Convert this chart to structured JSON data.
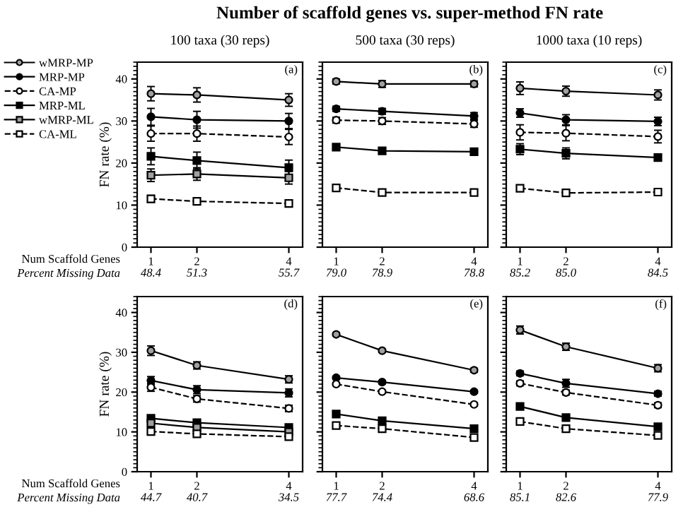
{
  "chart_data": [
    {
      "type": "line",
      "title": "Number of scaffold genes vs. super-method FN rate",
      "subtitle": "100 taxa (30 reps)",
      "xlabel": "Num Scaffold Genes",
      "x2label": "Percent Missing Data",
      "ylabel": "FN rate (%)",
      "annotations": [
        "(a)",
        "48.4",
        "51.3",
        "55.7"
      ],
      "x": [
        1,
        2,
        4
      ],
      "xlim": [
        0.7,
        4.3
      ],
      "xticks": [
        1,
        2,
        4
      ],
      "ylim": [
        0,
        44
      ],
      "yticks": [
        0,
        10,
        20,
        30,
        40
      ],
      "legend": "left",
      "grid": false,
      "series": [
        {
          "name": "wMRP-MP",
          "color": "#a0a0a0",
          "marker": "circle",
          "line_style": "solid",
          "values": [
            36.5,
            36.2,
            35.0
          ],
          "errors": [
            1.7,
            1.7,
            1.5
          ]
        },
        {
          "name": "MRP-MP",
          "color": "#000000",
          "marker": "circle",
          "line_style": "solid",
          "values": [
            31.0,
            30.3,
            30.0
          ],
          "errors": [
            2.0,
            2.0,
            1.8
          ]
        },
        {
          "name": "CA-MP",
          "color": "#ffffff",
          "marker": "circle",
          "line_style": "dashed",
          "values": [
            27.0,
            27.0,
            26.2
          ],
          "errors": [
            1.8,
            1.8,
            1.8
          ]
        },
        {
          "name": "MRP-ML",
          "color": "#000000",
          "marker": "square",
          "line_style": "solid",
          "values": [
            21.6,
            20.6,
            18.9
          ],
          "errors": [
            2.0,
            2.0,
            1.8
          ]
        },
        {
          "name": "wMRP-ML",
          "color": "#a0a0a0",
          "marker": "square",
          "line_style": "solid",
          "values": [
            17.1,
            17.4,
            16.5
          ],
          "errors": [
            1.5,
            1.5,
            1.5
          ]
        },
        {
          "name": "CA-ML",
          "color": "#ffffff",
          "marker": "square",
          "line_style": "dashed",
          "values": [
            11.5,
            10.9,
            10.4
          ],
          "errors": [
            0.8,
            0.8,
            0.6
          ]
        }
      ]
    },
    {
      "type": "line",
      "subtitle": "500 taxa (30 reps)",
      "annotations": [
        "(b)",
        "79.0",
        "78.9",
        "78.8"
      ],
      "x": [
        1,
        2,
        4
      ],
      "xlim": [
        0.7,
        4.3
      ],
      "xticks": [
        1,
        2,
        4
      ],
      "ylim": [
        0,
        44
      ],
      "yticks": [
        0,
        10,
        20,
        30,
        40
      ],
      "tick_labels": "x",
      "grid": false,
      "series": [
        {
          "color": "#a0a0a0",
          "marker": "circle",
          "line_style": "solid",
          "values": [
            39.4,
            38.8,
            38.8
          ],
          "errors": [
            0.6,
            0.8,
            0.7
          ]
        },
        {
          "color": "#000000",
          "marker": "circle",
          "line_style": "solid",
          "values": [
            32.9,
            32.3,
            31.2
          ],
          "errors": [
            0.6,
            0.7,
            0.8
          ]
        },
        {
          "color": "#ffffff",
          "marker": "circle",
          "line_style": "dashed",
          "values": [
            30.2,
            30.0,
            29.3
          ],
          "errors": [
            0.7,
            0.8,
            0.8
          ]
        },
        {
          "color": "#000000",
          "marker": "square",
          "line_style": "solid",
          "values": [
            23.8,
            22.9,
            22.7
          ],
          "errors": [
            0.6,
            0.7,
            0.8
          ]
        },
        {
          "color": "#a0a0a0",
          "marker": "square",
          "line_style": "solid",
          "values": [
            null,
            null,
            null
          ]
        },
        {
          "color": "#ffffff",
          "marker": "square",
          "line_style": "dashed",
          "values": [
            14.1,
            13.0,
            13.0
          ],
          "errors": [
            0.4,
            0.4,
            0.4
          ]
        }
      ]
    },
    {
      "type": "line",
      "subtitle": "1000 taxa (10 reps)",
      "annotations": [
        "(c)",
        "85.2",
        "85.0",
        "84.5"
      ],
      "x": [
        1,
        2,
        4
      ],
      "xlim": [
        0.7,
        4.3
      ],
      "xticks": [
        1,
        2,
        4
      ],
      "ylim": [
        0,
        44
      ],
      "yticks": [
        0,
        10,
        20,
        30,
        40
      ],
      "tick_labels": "x",
      "grid": false,
      "series": [
        {
          "color": "#a0a0a0",
          "marker": "circle",
          "line_style": "solid",
          "values": [
            37.8,
            37.1,
            36.2
          ],
          "errors": [
            1.5,
            1.2,
            1.2
          ]
        },
        {
          "color": "#000000",
          "marker": "circle",
          "line_style": "solid",
          "values": [
            31.9,
            30.3,
            29.9
          ],
          "errors": [
            1.0,
            1.2,
            1.0
          ]
        },
        {
          "color": "#ffffff",
          "marker": "circle",
          "line_style": "dashed",
          "values": [
            27.3,
            27.1,
            26.3
          ],
          "errors": [
            1.8,
            1.8,
            1.5
          ]
        },
        {
          "color": "#000000",
          "marker": "square",
          "line_style": "solid",
          "values": [
            23.3,
            22.3,
            21.3
          ],
          "errors": [
            1.3,
            1.3,
            0.5
          ]
        },
        {
          "color": "#a0a0a0",
          "marker": "square",
          "line_style": "solid",
          "values": [
            null,
            null,
            null
          ]
        },
        {
          "color": "#ffffff",
          "marker": "square",
          "line_style": "dashed",
          "values": [
            14.0,
            12.9,
            13.1
          ],
          "errors": [
            0.6,
            0.6,
            0.5
          ]
        }
      ]
    },
    {
      "type": "line",
      "xlabel": "Num Scaffold Genes",
      "x2label": "Percent Missing Data",
      "ylabel": "FN rate (%)",
      "annotations": [
        "(d)",
        "44.7",
        "40.7",
        "34.5"
      ],
      "x": [
        1,
        2,
        4
      ],
      "xlim": [
        0.7,
        4.3
      ],
      "xticks": [
        1,
        2,
        4
      ],
      "ylim": [
        0,
        44
      ],
      "yticks": [
        0,
        10,
        20,
        30,
        40
      ],
      "grid": false,
      "series": [
        {
          "color": "#a0a0a0",
          "marker": "circle",
          "line_style": "solid",
          "values": [
            30.4,
            26.7,
            23.2
          ],
          "errors": [
            1.2,
            0.9,
            0.9
          ]
        },
        {
          "color": "#000000",
          "marker": "circle",
          "line_style": "solid",
          "values": [
            22.9,
            20.6,
            19.8
          ],
          "errors": [
            1.0,
            1.0,
            1.0
          ]
        },
        {
          "color": "#ffffff",
          "marker": "circle",
          "line_style": "dashed",
          "values": [
            21.2,
            18.3,
            15.9
          ],
          "errors": [
            1.0,
            0.8,
            0.8
          ]
        },
        {
          "color": "#000000",
          "marker": "square",
          "line_style": "solid",
          "values": [
            13.4,
            12.3,
            11.1
          ],
          "errors": [
            0.5,
            0.5,
            0.5
          ]
        },
        {
          "color": "#a0a0a0",
          "marker": "square",
          "line_style": "solid",
          "values": [
            12.2,
            11.1,
            10.0
          ],
          "errors": [
            0.5,
            0.5,
            0.5
          ]
        },
        {
          "color": "#ffffff",
          "marker": "square",
          "line_style": "dashed",
          "values": [
            10.1,
            9.5,
            8.8
          ],
          "errors": [
            0.4,
            0.4,
            0.4
          ]
        }
      ]
    },
    {
      "type": "line",
      "annotations": [
        "(e)",
        "77.7",
        "74.4",
        "68.6"
      ],
      "x": [
        1,
        2,
        4
      ],
      "xlim": [
        0.7,
        4.3
      ],
      "xticks": [
        1,
        2,
        4
      ],
      "ylim": [
        0,
        44
      ],
      "yticks": [
        0,
        10,
        20,
        30,
        40
      ],
      "tick_labels": "x",
      "grid": false,
      "series": [
        {
          "color": "#a0a0a0",
          "marker": "circle",
          "line_style": "solid",
          "values": [
            34.5,
            30.4,
            25.5
          ],
          "errors": [
            0.4,
            0.4,
            0.5
          ]
        },
        {
          "color": "#000000",
          "marker": "circle",
          "line_style": "solid",
          "values": [
            23.6,
            22.5,
            20.1
          ],
          "errors": [
            0.4,
            0.4,
            0.4
          ]
        },
        {
          "color": "#ffffff",
          "marker": "circle",
          "line_style": "dashed",
          "values": [
            22.0,
            20.1,
            16.9
          ],
          "errors": [
            0.4,
            0.4,
            0.4
          ]
        },
        {
          "color": "#000000",
          "marker": "square",
          "line_style": "solid",
          "values": [
            14.5,
            12.8,
            10.8
          ],
          "errors": [
            0.3,
            0.3,
            0.3
          ]
        },
        {
          "color": "#a0a0a0",
          "marker": "square",
          "line_style": "solid",
          "values": [
            null,
            null,
            null
          ]
        },
        {
          "color": "#ffffff",
          "marker": "square",
          "line_style": "dashed",
          "values": [
            11.6,
            10.8,
            8.6
          ],
          "errors": [
            0.3,
            0.3,
            0.3
          ]
        }
      ]
    },
    {
      "type": "line",
      "annotations": [
        "(f)",
        "85.1",
        "82.6",
        "77.9"
      ],
      "x": [
        1,
        2,
        4
      ],
      "xlim": [
        0.7,
        4.3
      ],
      "xticks": [
        1,
        2,
        4
      ],
      "ylim": [
        0,
        44
      ],
      "yticks": [
        0,
        10,
        20,
        30,
        40
      ],
      "tick_labels": "x",
      "grid": false,
      "series": [
        {
          "color": "#a0a0a0",
          "marker": "circle",
          "line_style": "solid",
          "values": [
            35.6,
            31.4,
            26.0
          ],
          "errors": [
            1.0,
            0.9,
            0.9
          ]
        },
        {
          "color": "#000000",
          "marker": "circle",
          "line_style": "solid",
          "values": [
            24.7,
            22.2,
            19.6
          ],
          "errors": [
            0.6,
            1.0,
            0.6
          ]
        },
        {
          "color": "#ffffff",
          "marker": "circle",
          "line_style": "dashed",
          "values": [
            22.2,
            19.9,
            16.7
          ],
          "errors": [
            0.6,
            0.6,
            0.6
          ]
        },
        {
          "color": "#000000",
          "marker": "square",
          "line_style": "solid",
          "values": [
            16.4,
            13.6,
            11.3
          ],
          "errors": [
            0.4,
            0.4,
            0.4
          ]
        },
        {
          "color": "#a0a0a0",
          "marker": "square",
          "line_style": "solid",
          "values": [
            null,
            null,
            null
          ]
        },
        {
          "color": "#ffffff",
          "marker": "square",
          "line_style": "dashed",
          "values": [
            12.6,
            10.8,
            9.1
          ],
          "errors": [
            0.4,
            0.4,
            0.4
          ]
        }
      ]
    }
  ]
}
